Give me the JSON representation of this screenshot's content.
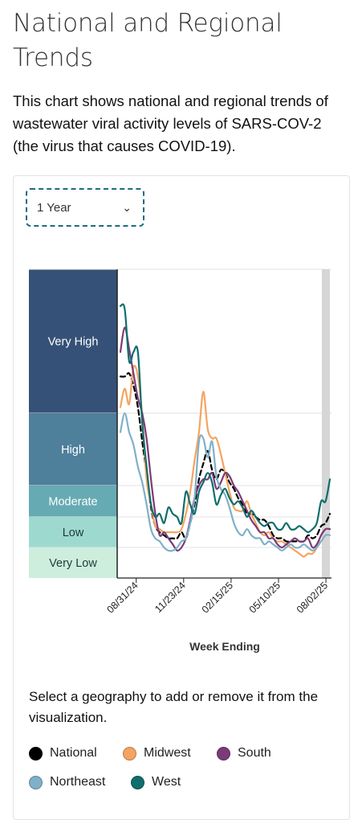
{
  "page": {
    "title": "National and Regional Trends",
    "description": "This chart shows national and regional trends of wastewater viral activity levels of SARS-COV-2 (the virus that causes COVID-19).",
    "range_select": {
      "selected": "1 Year"
    },
    "geography_prompt": "Select a geography to add or remove it from the visualization."
  },
  "chart_data": {
    "type": "line",
    "xlabel": "Week Ending",
    "x_ticks": [
      "08/31/24",
      "11/23/24",
      "02/15/25",
      "05/10/25",
      "08/02/25"
    ],
    "x_start": "2024-08-03",
    "x_end": "2025-08-09",
    "levels": [
      {
        "name": "Very High",
        "color": "#355177"
      },
      {
        "name": "High",
        "color": "#4e7f9b"
      },
      {
        "name": "Moderate",
        "color": "#66aab3"
      },
      {
        "name": "Low",
        "color": "#9ed9d0"
      },
      {
        "name": "Very Low",
        "color": "#cdeedd"
      }
    ],
    "level_bounds": [
      0,
      1,
      2,
      3,
      5.3,
      8
    ],
    "ylim": [
      0,
      10
    ],
    "shaded_last_week": true,
    "series": [
      {
        "name": "National",
        "color": "#000000",
        "dash": "6,4",
        "values": [
          6.5,
          6.5,
          6.6,
          6.2,
          5.5,
          4.4,
          3.4,
          2.3,
          1.7,
          1.5,
          1.4,
          1.3,
          1.3,
          1.3,
          1.5,
          1.3,
          1.8,
          2.4,
          3.2,
          3.7,
          4.1,
          3.5,
          3.2,
          3.5,
          3.4,
          3.1,
          2.9,
          2.6,
          2.4,
          2.1,
          2.1,
          2.0,
          1.9,
          1.9,
          1.7,
          1.4,
          1.3,
          1.3,
          1.2,
          1.2,
          1.2,
          1.2,
          1.2,
          1.4,
          1.3,
          1.4,
          1.7,
          1.8,
          2.1
        ]
      },
      {
        "name": "Midwest",
        "color": "#f4a460",
        "values": [
          5.5,
          6.1,
          5.6,
          6.8,
          6.5,
          5.2,
          3.2,
          2.4,
          1.7,
          1.6,
          1.5,
          1.5,
          1.5,
          1.5,
          1.6,
          2.1,
          2.8,
          3.8,
          4.7,
          6.0,
          4.8,
          4.5,
          4.5,
          4.0,
          3.4,
          2.8,
          2.3,
          2.2,
          2.2,
          2.5,
          2.1,
          1.8,
          1.5,
          1.4,
          1.5,
          1.3,
          1.2,
          1.2,
          1.1,
          1.0,
          0.9,
          0.8,
          0.7,
          0.8,
          0.8,
          1.0,
          1.4,
          1.6,
          1.6
        ]
      },
      {
        "name": "South",
        "color": "#7b3b78",
        "values": [
          7.3,
          8.1,
          7.4,
          6.6,
          5.8,
          5.3,
          4.5,
          3.2,
          2.1,
          1.4,
          1.5,
          1.3,
          1.1,
          0.9,
          1.0,
          1.3,
          1.9,
          2.6,
          3.0,
          3.2,
          3.2,
          3.4,
          2.9,
          3.1,
          3.4,
          3.3,
          3.0,
          2.8,
          2.5,
          2.2,
          1.9,
          1.7,
          1.5,
          1.5,
          1.3,
          1.3,
          1.1,
          1.0,
          1.1,
          1.2,
          1.3,
          1.2,
          1.2,
          1.3,
          1.0,
          1.1,
          1.4,
          1.6,
          1.6
        ]
      },
      {
        "name": "Northeast",
        "color": "#7fb0c8",
        "values": [
          4.7,
          5.3,
          4.7,
          4.3,
          3.6,
          3.1,
          2.4,
          1.6,
          1.3,
          1.2,
          1.0,
          0.9,
          0.9,
          1.0,
          1.2,
          1.3,
          1.8,
          2.6,
          4.4,
          4.5,
          3.9,
          4.4,
          3.3,
          2.9,
          2.7,
          2.3,
          1.8,
          1.5,
          1.4,
          1.6,
          1.4,
          1.3,
          1.3,
          1.1,
          1.2,
          1.1,
          1.0,
          0.9,
          1.0,
          1.1,
          1.0,
          1.0,
          1.1,
          1.0,
          0.9,
          1.0,
          1.2,
          1.4,
          1.4
        ]
      },
      {
        "name": "West",
        "color": "#0f6e6c",
        "values": [
          8.8,
          8.7,
          7.0,
          7.3,
          7.3,
          5.0,
          3.6,
          2.4,
          2.0,
          2.1,
          1.8,
          2.3,
          2.1,
          2.0,
          1.8,
          2.8,
          2.4,
          2.1,
          2.8,
          3.1,
          3.4,
          3.1,
          2.4,
          2.7,
          2.9,
          2.6,
          2.4,
          2.5,
          2.3,
          2.0,
          2.2,
          2.0,
          1.8,
          1.7,
          1.8,
          1.8,
          1.6,
          1.6,
          1.8,
          1.6,
          1.6,
          1.7,
          1.6,
          1.5,
          1.6,
          1.8,
          2.5,
          2.5,
          3.2
        ]
      }
    ]
  }
}
